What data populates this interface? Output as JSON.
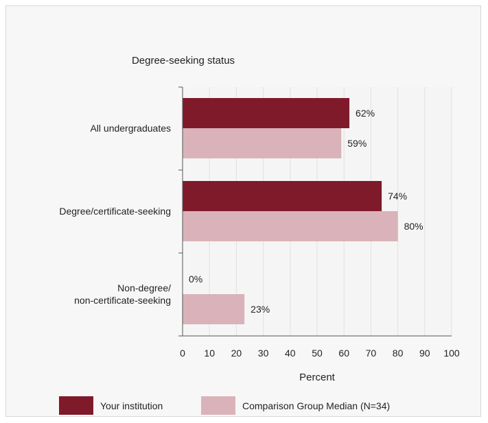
{
  "chart_data": {
    "type": "bar",
    "orientation": "horizontal",
    "title": "Degree-seeking status",
    "xlabel": "Percent",
    "ylabel": "",
    "xlim": [
      0,
      100
    ],
    "xticks": [
      0,
      10,
      20,
      30,
      40,
      50,
      60,
      70,
      80,
      90,
      100
    ],
    "grid": "vertical",
    "legend_position": "bottom",
    "categories": [
      [
        "All undergraduates"
      ],
      [
        "Degree/certificate-seeking"
      ],
      [
        "Non-degree/",
        "non-certificate-seeking"
      ]
    ],
    "series": [
      {
        "name": "Your institution",
        "color": "#7f1a2b",
        "values": [
          62,
          74,
          0
        ],
        "labels": [
          "62%",
          "74%",
          "0%"
        ]
      },
      {
        "name": "Comparison Group Median (N=34)",
        "color": "#d9b3b9",
        "values": [
          59,
          80,
          23
        ],
        "labels": [
          "59%",
          "80%",
          "23%"
        ]
      }
    ]
  }
}
